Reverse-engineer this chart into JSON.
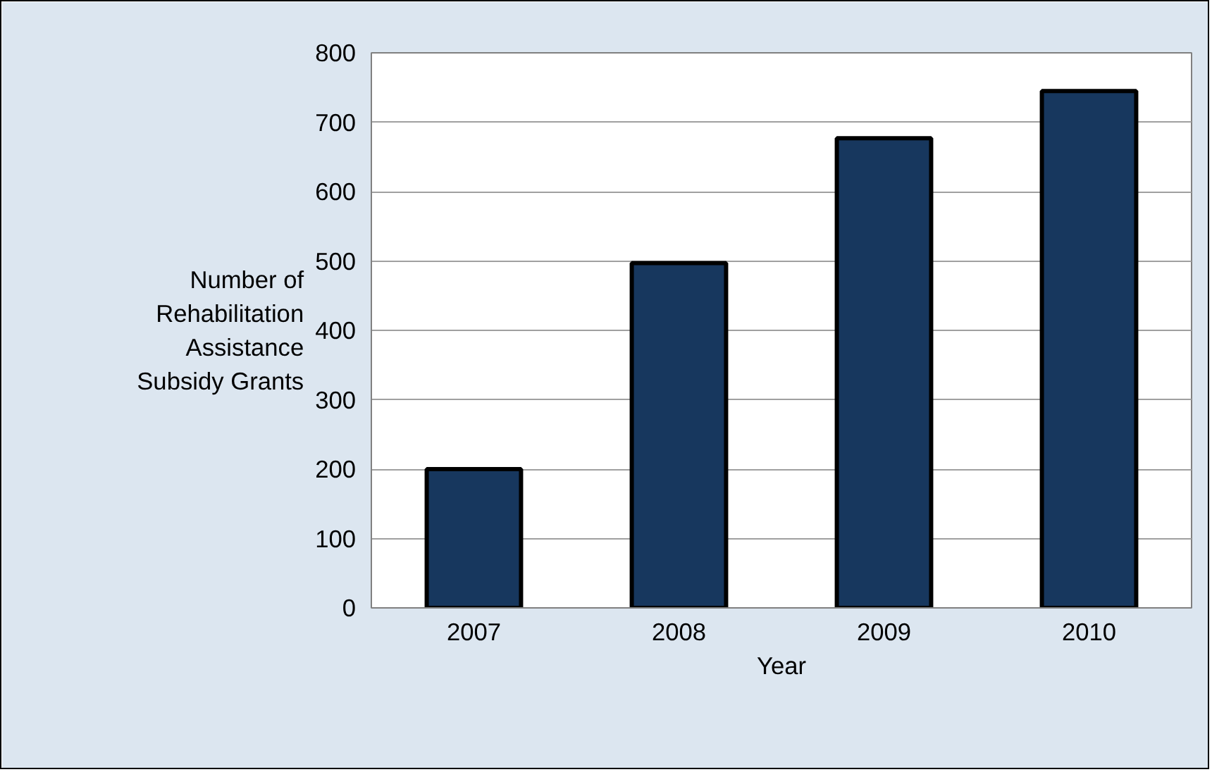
{
  "chart_data": {
    "type": "bar",
    "xlabel": "Year",
    "ylabel": "Number of Rehabilitation Assistance Subsidy Grants",
    "categories": [
      "2007",
      "2008",
      "2009",
      "2010"
    ],
    "values": [
      200,
      497,
      677,
      745
    ],
    "color": "#17375e",
    "ylim": [
      0,
      800
    ],
    "yticks": [
      0,
      100,
      200,
      300,
      400,
      500,
      600,
      700,
      800
    ],
    "grid": "y"
  }
}
